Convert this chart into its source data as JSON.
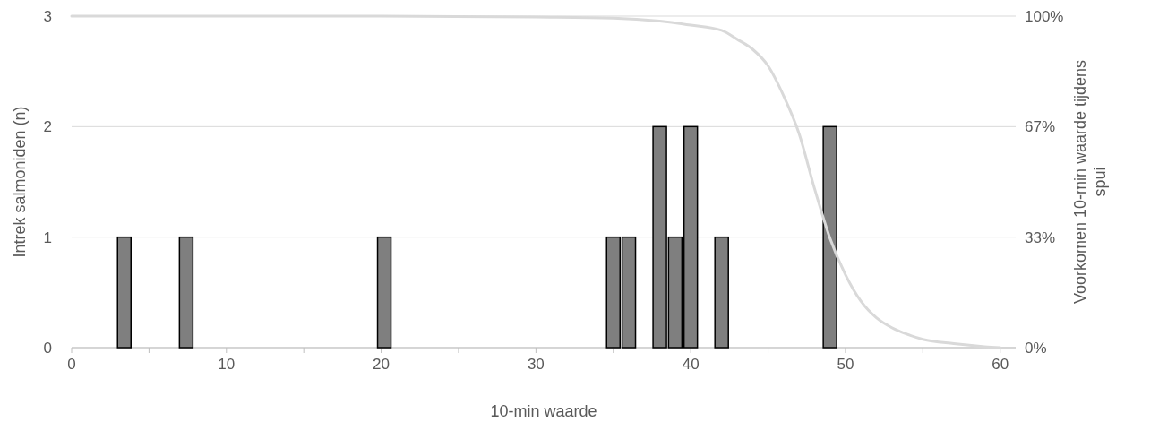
{
  "chart_data": {
    "type": "bar",
    "xlabel": "10-min waarde",
    "ylabel": "Intrek salmoniden (n)",
    "y2label": "Voorkomen 10-min waarde tijdens spui",
    "x": [
      3.4,
      7.4,
      20.2,
      35,
      36,
      38,
      39,
      40,
      42,
      49
    ],
    "series": [
      {
        "color": "#7f7f7f",
        "values": [
          1,
          1,
          1,
          1,
          1,
          2,
          1,
          2,
          1,
          2
        ]
      },
      {
        "type": "line",
        "axis": "y2",
        "color": "#d9d9d9",
        "x": [
          0,
          10,
          20,
          30,
          35,
          38,
          40,
          42,
          43,
          44,
          45,
          46,
          47,
          48,
          49,
          50,
          51,
          52,
          53,
          54,
          55,
          57,
          59,
          60
        ],
        "values": [
          100,
          100,
          100,
          99.7,
          99.4,
          98.5,
          97.3,
          95.7,
          93,
          90,
          85,
          76,
          64.6,
          48,
          33,
          22,
          14,
          9,
          6,
          4,
          2.5,
          1.2,
          0.3,
          0
        ]
      }
    ],
    "xlim": [
      0,
      61
    ],
    "xticks": [
      0,
      {
        "value": 5,
        "label": null
      },
      10,
      {
        "value": 15,
        "label": null
      },
      20,
      {
        "value": 25,
        "label": null
      },
      30,
      {
        "value": 35,
        "label": null
      },
      40,
      {
        "value": 45,
        "label": null
      },
      50,
      {
        "value": 55,
        "label": null
      },
      60
    ],
    "ylim": [
      0,
      3
    ],
    "yticks": [
      0,
      1,
      2,
      3
    ],
    "y2lim": [
      0,
      100
    ],
    "y2ticks": [
      {
        "value": 0,
        "label": "0%"
      },
      {
        "value": 33.333,
        "label": "33%"
      },
      {
        "value": 66.667,
        "label": "67%"
      },
      {
        "value": 100,
        "label": "100%"
      }
    ],
    "grid": "y",
    "marker": "none",
    "line_style": "solid"
  }
}
